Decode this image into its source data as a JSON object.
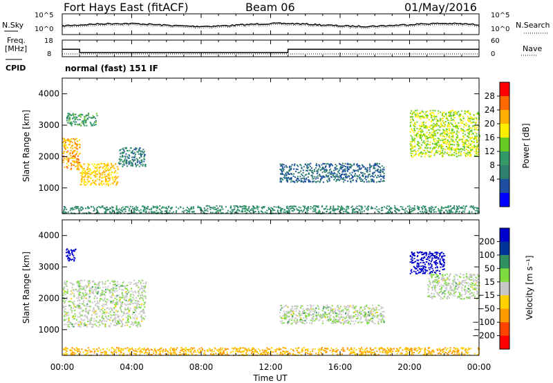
{
  "header": {
    "station": "Fort Hays East (fitACF)",
    "beam": "Beam 06",
    "date": "01/May/2016"
  },
  "noise_panel": {
    "left_label": "N.Sky",
    "right_label": "N.Search",
    "left_ticks": [
      "10^5",
      "10^0"
    ],
    "right_ticks": [
      "10^5",
      "10^0"
    ]
  },
  "freq_panel": {
    "left_label_1": "Freq.",
    "left_label_2": "[MHz]",
    "right_label": "Nave",
    "left_ticks": [
      "18",
      "8"
    ],
    "right_ticks": [
      "60",
      "0"
    ],
    "freq_mhz_steps": [
      {
        "t_start": 0.0,
        "t_end": 1.0,
        "value": 12.5
      },
      {
        "t_start": 1.0,
        "t_end": 13.0,
        "value": 10.5
      },
      {
        "t_start": 13.0,
        "t_end": 24.0,
        "value": 12.5
      }
    ],
    "nave_level": 10
  },
  "cpid": {
    "label": "CPID",
    "value": "normal (fast) 151 IF"
  },
  "power_panel": {
    "ylabel": "Slant Range [km]",
    "ytick_labels": [
      "1000",
      "2000",
      "3000",
      "4000"
    ],
    "colorbar_label": "Power [dB]",
    "colorbar_ticks": [
      "28",
      "24",
      "20",
      "16",
      "12",
      "8",
      "4"
    ],
    "colorbar_colors": [
      "#ff0000",
      "#ff6a00",
      "#ffb000",
      "#ffee00",
      "#66cc22",
      "#339966",
      "#2f7f6f",
      "#1f4fa0",
      "#0000ff"
    ]
  },
  "velocity_panel": {
    "ylabel": "Slant Range [km]",
    "ytick_labels": [
      "1000",
      "2000",
      "3000",
      "4000"
    ],
    "colorbar_label": "Velocity [m s⁻¹]",
    "colorbar_ticks": [
      "200",
      "100",
      "50",
      "15",
      "−15",
      "−50",
      "−100",
      "−200"
    ],
    "colorbar_colors": [
      "#0000cc",
      "#003399",
      "#2f8f5f",
      "#7fdc3f",
      "#c8c8c8",
      "#ffd200",
      "#ff9900",
      "#ff4400",
      "#ff0000"
    ]
  },
  "xaxis": {
    "label": "Time UT",
    "tick_labels": [
      "00:00",
      "04:00",
      "08:00",
      "12:00",
      "16:00",
      "20:00",
      "00:00"
    ]
  },
  "chart_data": {
    "type": "heatmap",
    "x_range_hours": [
      0,
      24
    ],
    "y_range_km": [
      180,
      4500
    ],
    "power_regions": [
      {
        "t": [
          0.0,
          1.0
        ],
        "r": [
          1600,
          2600
        ],
        "db": 24
      },
      {
        "t": [
          1.0,
          3.2
        ],
        "r": [
          1100,
          1800
        ],
        "db": 22
      },
      {
        "t": [
          3.2,
          4.8
        ],
        "r": [
          1700,
          2300
        ],
        "db": 8
      },
      {
        "t": [
          0.2,
          2.0
        ],
        "r": [
          3000,
          3400
        ],
        "db": 12
      },
      {
        "t": [
          12.5,
          18.5
        ],
        "r": [
          1200,
          1800
        ],
        "db": 6
      },
      {
        "t": [
          20.0,
          24.0
        ],
        "r": [
          2000,
          3500
        ],
        "db": 18
      },
      {
        "t": [
          0.0,
          24.0
        ],
        "r": [
          200,
          450
        ],
        "db": 10
      }
    ],
    "velocity_regions": [
      {
        "t": [
          0.0,
          4.8
        ],
        "r": [
          1100,
          2600
        ],
        "v": 0
      },
      {
        "t": [
          0.2,
          0.8
        ],
        "r": [
          3200,
          3600
        ],
        "v": 200
      },
      {
        "t": [
          20.0,
          22.0
        ],
        "r": [
          2800,
          3500
        ],
        "v": 200
      },
      {
        "t": [
          21.0,
          24.0
        ],
        "r": [
          2000,
          2800
        ],
        "v": 0
      },
      {
        "t": [
          12.5,
          18.5
        ],
        "r": [
          1200,
          1800
        ],
        "v": 0
      },
      {
        "t": [
          0.0,
          24.0
        ],
        "r": [
          200,
          450
        ],
        "v": -50
      }
    ]
  }
}
